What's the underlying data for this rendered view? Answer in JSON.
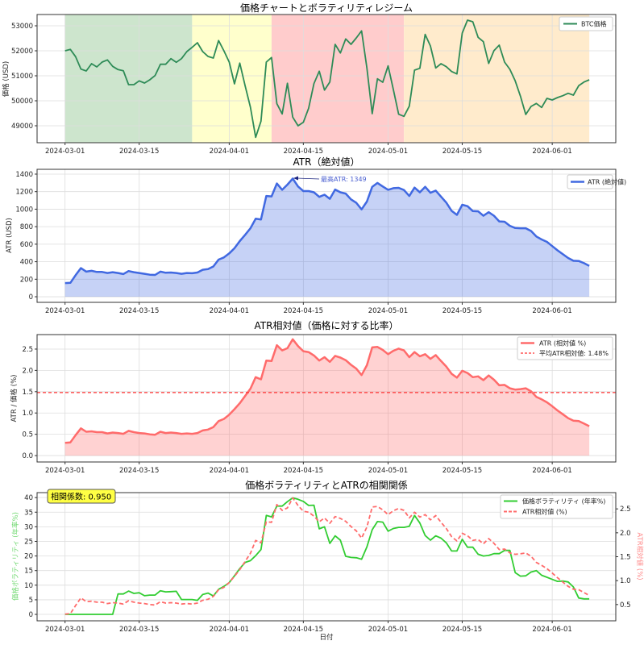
{
  "dates": [
    "2024-03-01",
    "2024-03-02",
    "2024-03-03",
    "2024-03-04",
    "2024-03-05",
    "2024-03-06",
    "2024-03-07",
    "2024-03-08",
    "2024-03-09",
    "2024-03-10",
    "2024-03-11",
    "2024-03-12",
    "2024-03-13",
    "2024-03-14",
    "2024-03-15",
    "2024-03-16",
    "2024-03-17",
    "2024-03-18",
    "2024-03-19",
    "2024-03-20",
    "2024-03-21",
    "2024-03-22",
    "2024-03-23",
    "2024-03-24",
    "2024-03-25",
    "2024-03-26",
    "2024-03-27",
    "2024-03-28",
    "2024-03-29",
    "2024-03-30",
    "2024-03-31",
    "2024-04-01",
    "2024-04-02",
    "2024-04-03",
    "2024-04-04",
    "2024-04-05",
    "2024-04-06",
    "2024-04-07",
    "2024-04-08",
    "2024-04-09",
    "2024-04-10",
    "2024-04-11",
    "2024-04-12",
    "2024-04-13",
    "2024-04-14",
    "2024-04-15",
    "2024-04-16",
    "2024-04-17",
    "2024-04-18",
    "2024-04-19",
    "2024-04-20",
    "2024-04-21",
    "2024-04-22",
    "2024-04-23",
    "2024-04-24",
    "2024-04-25",
    "2024-04-26",
    "2024-04-27",
    "2024-04-28",
    "2024-04-29",
    "2024-04-30",
    "2024-05-01",
    "2024-05-02",
    "2024-05-03",
    "2024-05-04",
    "2024-05-05",
    "2024-05-06",
    "2024-05-07",
    "2024-05-08",
    "2024-05-09",
    "2024-05-10",
    "2024-05-11",
    "2024-05-12",
    "2024-05-13",
    "2024-05-14",
    "2024-05-15",
    "2024-05-16",
    "2024-05-17",
    "2024-05-18",
    "2024-05-19",
    "2024-05-20",
    "2024-05-21",
    "2024-05-22",
    "2024-05-23",
    "2024-05-24",
    "2024-05-25",
    "2024-05-26",
    "2024-05-27",
    "2024-05-28",
    "2024-05-29",
    "2024-05-30",
    "2024-05-31",
    "2024-06-01",
    "2024-06-02",
    "2024-06-03",
    "2024-06-04",
    "2024-06-05",
    "2024-06-06",
    "2024-06-07",
    "2024-06-08"
  ],
  "x_ticks": [
    "2024-03-01",
    "2024-03-15",
    "2024-04-01",
    "2024-04-15",
    "2024-05-01",
    "2024-05-15",
    "2024-06-01"
  ],
  "chart_data": [
    {
      "type": "line",
      "title": "価格チャートとボラティリティレジーム",
      "ylabel": "価格 (USD)",
      "ylim": [
        48322,
        53452
      ],
      "y_ticks": [
        49000,
        50000,
        51000,
        52000,
        53000
      ],
      "grid": true,
      "legend_position": "top-right",
      "regimes": [
        {
          "start": "2024-03-01",
          "end": "2024-03-25",
          "color": "#cde5cd"
        },
        {
          "start": "2024-03-25",
          "end": "2024-04-09",
          "color": "#ffffcc"
        },
        {
          "start": "2024-04-09",
          "end": "2024-05-04",
          "color": "#ffcccc"
        },
        {
          "start": "2024-05-04",
          "end": "2024-06-08",
          "color": "#ffebcc"
        }
      ],
      "series": [
        {
          "name": "BTC価格",
          "color": "#2e8b57",
          "values": [
            52000,
            52054,
            51763,
            51269,
            51194,
            51484,
            51355,
            51548,
            51634,
            51376,
            51247,
            51204,
            50645,
            50645,
            50796,
            50710,
            50839,
            51011,
            51462,
            51462,
            51688,
            51538,
            51688,
            51968,
            52140,
            52323,
            51968,
            51774,
            51710,
            52409,
            52000,
            51548,
            50677,
            51505,
            50602,
            49742,
            48538,
            49183,
            51548,
            51731,
            49882,
            49473,
            50699,
            49344,
            49000,
            49140,
            49700,
            50688,
            51183,
            50430,
            50753,
            52258,
            51914,
            52473,
            52258,
            52516,
            52796,
            51312,
            49484,
            50882,
            50742,
            51398,
            50452,
            49462,
            49376,
            49785,
            51226,
            51301,
            52656,
            52194,
            51312,
            51484,
            51366,
            51172,
            51075,
            52710,
            53226,
            53161,
            52538,
            52366,
            51495,
            52011,
            52226,
            51548,
            51258,
            50796,
            50183,
            49452,
            49774,
            49892,
            49731,
            50097,
            50032,
            50129,
            50204,
            50301,
            50226,
            50602,
            50753,
            50839
          ]
        }
      ]
    },
    {
      "type": "area",
      "title": "ATR（絶対値）",
      "ylabel": "ATR (USD)",
      "ylim": [
        -64,
        1455
      ],
      "y_ticks": [
        0,
        200,
        400,
        600,
        800,
        1000,
        1200,
        1400
      ],
      "grid": true,
      "legend_position": "top-right",
      "annotation": {
        "text": "最高ATR: 1349",
        "date": "2024-04-13",
        "value": 1349
      },
      "series": [
        {
          "name": "ATR (絶対値)",
          "color": "#4169e1",
          "values": [
            156,
            159,
            246,
            327,
            287,
            296,
            283,
            283,
            271,
            280,
            271,
            259,
            293,
            280,
            271,
            262,
            252,
            249,
            287,
            274,
            277,
            271,
            262,
            271,
            268,
            277,
            308,
            315,
            346,
            424,
            449,
            495,
            554,
            636,
            707,
            782,
            891,
            882,
            1150,
            1146,
            1293,
            1221,
            1280,
            1349,
            1259,
            1206,
            1206,
            1193,
            1140,
            1165,
            1118,
            1224,
            1193,
            1178,
            1112,
            1072,
            997,
            1087,
            1255,
            1299,
            1259,
            1221,
            1240,
            1243,
            1218,
            1150,
            1246,
            1193,
            1255,
            1187,
            1212,
            1143,
            1075,
            981,
            935,
            1050,
            1034,
            978,
            975,
            925,
            966,
            925,
            860,
            857,
            810,
            785,
            782,
            782,
            751,
            688,
            654,
            626,
            579,
            530,
            486,
            442,
            411,
            408,
            383,
            352
          ]
        }
      ]
    },
    {
      "type": "area",
      "title": "ATR相対値（価格に対する比率）",
      "ylabel": "ATR / 価格 (%)",
      "ylim": [
        -0.15,
        2.84
      ],
      "y_ticks": [
        0.0,
        0.5,
        1.0,
        1.5,
        2.0,
        2.5
      ],
      "grid": true,
      "legend_position": "top-right",
      "mean_line": {
        "label": "平均ATR相対値: 1.48%",
        "value": 1.48,
        "color": "#ff3333"
      },
      "series": [
        {
          "name": "ATR (相対値 %)",
          "color": "#ff6b6b",
          "values": [
            0.3,
            0.31,
            0.48,
            0.64,
            0.56,
            0.57,
            0.55,
            0.55,
            0.52,
            0.54,
            0.53,
            0.51,
            0.58,
            0.55,
            0.53,
            0.52,
            0.5,
            0.49,
            0.56,
            0.53,
            0.54,
            0.53,
            0.51,
            0.52,
            0.51,
            0.53,
            0.59,
            0.61,
            0.67,
            0.81,
            0.86,
            0.96,
            1.09,
            1.23,
            1.4,
            1.57,
            1.84,
            1.79,
            2.23,
            2.22,
            2.59,
            2.47,
            2.52,
            2.73,
            2.57,
            2.45,
            2.43,
            2.35,
            2.23,
            2.31,
            2.2,
            2.34,
            2.3,
            2.24,
            2.13,
            2.04,
            1.89,
            2.12,
            2.54,
            2.55,
            2.48,
            2.38,
            2.46,
            2.51,
            2.47,
            2.31,
            2.43,
            2.33,
            2.38,
            2.27,
            2.36,
            2.22,
            2.09,
            1.92,
            1.83,
            1.99,
            1.94,
            1.84,
            1.86,
            1.77,
            1.88,
            1.78,
            1.65,
            1.66,
            1.58,
            1.55,
            1.56,
            1.58,
            1.51,
            1.38,
            1.32,
            1.25,
            1.16,
            1.06,
            0.97,
            0.88,
            0.82,
            0.81,
            0.75,
            0.69
          ]
        }
      ]
    },
    {
      "type": "line",
      "title": "価格ボラティリティとATRの相関関係",
      "xlabel": "日付",
      "ylabel": "価格ボラティリティ (年率%)",
      "ylabel_right": "ATR相対値 (%)",
      "ylim": [
        -2.2,
        41.7
      ],
      "ylim_right": [
        0.16,
        2.84
      ],
      "y_ticks": [
        0,
        5,
        10,
        15,
        20,
        25,
        30,
        35,
        40
      ],
      "y_ticks_right": [
        0.5,
        1.0,
        1.5,
        2.0,
        2.5
      ],
      "grid": true,
      "legend_position": "top-right",
      "correlation_label": "相関係数: 0.950",
      "series": [
        {
          "name": "価格ボラティリティ (年率%)",
          "axis": "left",
          "color": "#32cd32",
          "values": [
            0,
            0,
            0,
            0,
            0,
            0,
            0,
            0,
            0,
            0,
            7.0,
            7.0,
            8.0,
            7.2,
            7.4,
            6.4,
            6.6,
            6.6,
            8.1,
            7.7,
            7.8,
            7.9,
            5.1,
            5.1,
            5.1,
            4.8,
            6.8,
            7.3,
            6.3,
            8.6,
            9.6,
            10.9,
            13.2,
            15.7,
            17.8,
            18.4,
            20.1,
            22.2,
            33.9,
            33.4,
            37.1,
            37.1,
            38.6,
            39.9,
            39.4,
            38.7,
            37.3,
            37.4,
            29.3,
            30.0,
            24.3,
            26.9,
            25.4,
            19.9,
            19.5,
            19.4,
            18.9,
            23.1,
            29.0,
            31.8,
            31.6,
            28.5,
            29.4,
            29.8,
            29.8,
            30.2,
            33.9,
            31.3,
            27.0,
            25.4,
            26.9,
            26.1,
            24.5,
            21.7,
            21.7,
            25.7,
            23.0,
            23.0,
            20.6,
            20.0,
            20.2,
            20.8,
            20.8,
            21.9,
            21.9,
            14.3,
            13.1,
            13.2,
            14.5,
            15.0,
            13.4,
            12.7,
            12.0,
            11.3,
            11.4,
            11.1,
            9.4,
            5.6,
            5.3,
            5.3
          ]
        },
        {
          "name": "ATR相対値 (%)",
          "axis": "right",
          "color": "#ff6b6b",
          "dashed": true,
          "values": "same as ATR (相対値 %)"
        }
      ]
    }
  ]
}
